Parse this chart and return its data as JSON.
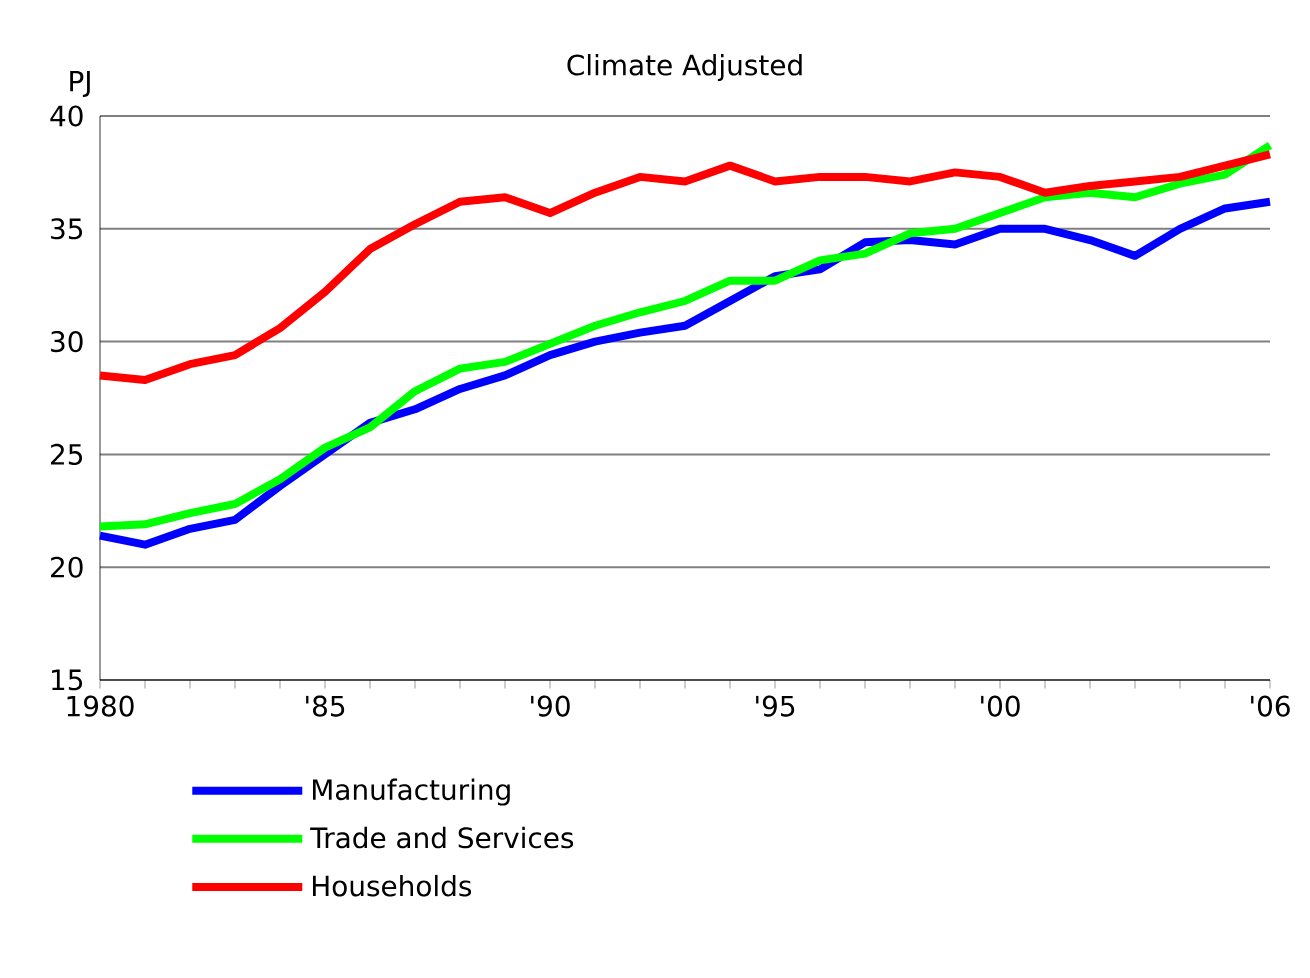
{
  "chart_data": {
    "type": "line",
    "title": "Climate Adjusted",
    "ylabel": "PJ",
    "x": [
      1980,
      1981,
      1982,
      1983,
      1984,
      1985,
      1986,
      1987,
      1988,
      1989,
      1990,
      1991,
      1992,
      1993,
      1994,
      1995,
      1996,
      1997,
      1998,
      1999,
      2000,
      2001,
      2002,
      2003,
      2004,
      2005,
      2006
    ],
    "series": [
      {
        "name": "Manufacturing",
        "color": "#0000ff",
        "values": [
          21.4,
          21.0,
          21.7,
          22.1,
          23.6,
          25.0,
          26.4,
          27.0,
          27.9,
          28.5,
          29.4,
          30.0,
          30.4,
          30.7,
          31.8,
          32.9,
          33.2,
          34.4,
          34.5,
          34.3,
          35.0,
          35.0,
          34.5,
          33.8,
          35.0,
          35.9,
          36.2
        ]
      },
      {
        "name": "Trade and Services",
        "color": "#00ff00",
        "values": [
          21.8,
          21.9,
          22.4,
          22.8,
          23.9,
          25.3,
          26.2,
          27.8,
          28.8,
          29.1,
          29.9,
          30.7,
          31.3,
          31.8,
          32.7,
          32.7,
          33.6,
          33.9,
          34.8,
          35.0,
          35.7,
          36.4,
          36.6,
          36.4,
          37.0,
          37.4,
          38.7
        ]
      },
      {
        "name": "Households",
        "color": "#ff0000",
        "values": [
          28.5,
          28.3,
          29.0,
          29.4,
          30.6,
          32.2,
          34.1,
          35.2,
          36.2,
          36.4,
          35.7,
          36.6,
          37.3,
          37.1,
          37.8,
          37.1,
          37.3,
          37.3,
          37.1,
          37.5,
          37.3,
          36.6,
          36.9,
          37.1,
          37.3,
          37.8,
          38.3
        ]
      }
    ],
    "xlim": [
      1980,
      2006
    ],
    "xticks": [
      1980,
      {
        "value": 1981,
        "label": null
      },
      {
        "value": 1982,
        "label": null
      },
      {
        "value": 1983,
        "label": null
      },
      {
        "value": 1984,
        "label": null
      },
      {
        "value": 1985,
        "label": "'85"
      },
      {
        "value": 1986,
        "label": null
      },
      {
        "value": 1987,
        "label": null
      },
      {
        "value": 1988,
        "label": null
      },
      {
        "value": 1989,
        "label": null
      },
      {
        "value": 1990,
        "label": "'90"
      },
      {
        "value": 1991,
        "label": null
      },
      {
        "value": 1992,
        "label": null
      },
      {
        "value": 1993,
        "label": null
      },
      {
        "value": 1994,
        "label": null
      },
      {
        "value": 1995,
        "label": "'95"
      },
      {
        "value": 1996,
        "label": null
      },
      {
        "value": 1997,
        "label": null
      },
      {
        "value": 1998,
        "label": null
      },
      {
        "value": 1999,
        "label": null
      },
      {
        "value": 2000,
        "label": "'00"
      },
      {
        "value": 2001,
        "label": null
      },
      {
        "value": 2002,
        "label": null
      },
      {
        "value": 2003,
        "label": null
      },
      {
        "value": 2004,
        "label": null
      },
      {
        "value": 2005,
        "label": null
      },
      {
        "value": 2006,
        "label": "'06"
      }
    ],
    "ylim": [
      15,
      40
    ],
    "yticks": [
      15,
      20,
      25,
      30,
      35,
      40
    ],
    "grid": "y",
    "legend": "bottom",
    "marker": "none",
    "line_style": "solid"
  }
}
